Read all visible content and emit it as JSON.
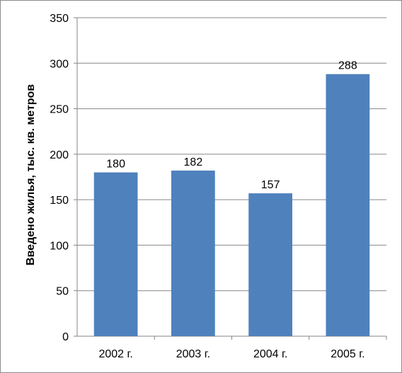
{
  "chart_data": {
    "type": "bar",
    "categories": [
      "2002 г.",
      "2003 г.",
      "2004 г.",
      "2005 г."
    ],
    "values": [
      180,
      182,
      157,
      288
    ],
    "data_labels": [
      "180",
      "182",
      "157",
      "288"
    ],
    "title": "",
    "xlabel": "",
    "ylabel": "Введено жилья, тыс. кв. метров",
    "ylim": [
      0,
      350
    ],
    "yticks": [
      0,
      50,
      100,
      150,
      200,
      250,
      300,
      350
    ],
    "ytick_labels": [
      "0",
      "50",
      "100",
      "150",
      "200",
      "250",
      "300",
      "350"
    ],
    "grid": true,
    "legend": "none",
    "colors": {
      "bar": "#4f81bd",
      "grid": "#868686",
      "axis": "#868686"
    }
  }
}
